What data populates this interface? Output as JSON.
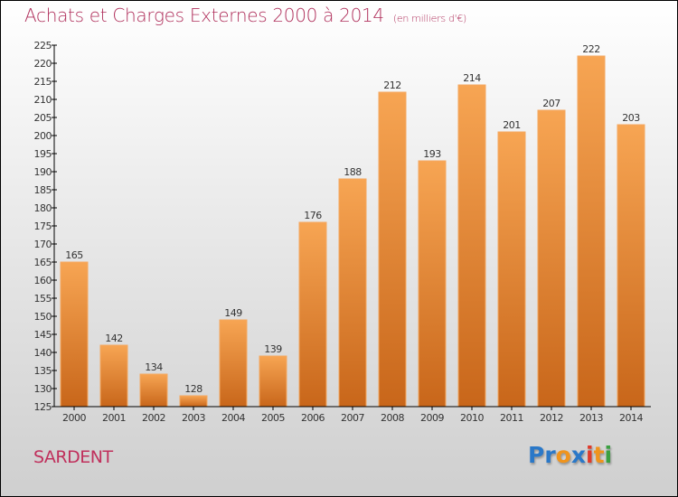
{
  "title": "Achats et Charges Externes 2000 à 2014",
  "unit_note": "(en milliers d'€)",
  "commune": "SARDENT",
  "logo": {
    "letters": [
      {
        "ch": "P",
        "color": "#2a78c8"
      },
      {
        "ch": "r",
        "color": "#2a78c8"
      },
      {
        "ch": "o",
        "color": "#f0941c"
      },
      {
        "ch": "x",
        "color": "#2a78c8"
      },
      {
        "ch": "i",
        "color": "#e03a2a"
      },
      {
        "ch": "t",
        "color": "#f0941c"
      },
      {
        "ch": "i",
        "color": "#3aa040"
      }
    ]
  },
  "colors": {
    "title": "#b0305c",
    "bar_top": "#f7a553",
    "bar_bottom": "#c8661a",
    "bar_edge": "#f4a860",
    "axis": "#000000"
  },
  "chart_data": {
    "type": "bar",
    "title": "Achats et Charges Externes 2000 à 2014",
    "subtitle": "(en milliers d'€)",
    "xlabel": "",
    "ylabel": "",
    "categories": [
      "2000",
      "2001",
      "2002",
      "2003",
      "2004",
      "2005",
      "2006",
      "2007",
      "2008",
      "2009",
      "2010",
      "2011",
      "2012",
      "2013",
      "2014"
    ],
    "values": [
      165,
      142,
      134,
      128,
      149,
      139,
      176,
      188,
      212,
      193,
      214,
      201,
      207,
      222,
      203
    ],
    "ylim": [
      125,
      225
    ],
    "yticks": [
      125,
      130,
      135,
      140,
      145,
      150,
      155,
      160,
      165,
      170,
      175,
      180,
      185,
      190,
      195,
      200,
      205,
      210,
      215,
      220,
      225
    ],
    "grid": false,
    "legend": "none",
    "data_labels": true
  }
}
